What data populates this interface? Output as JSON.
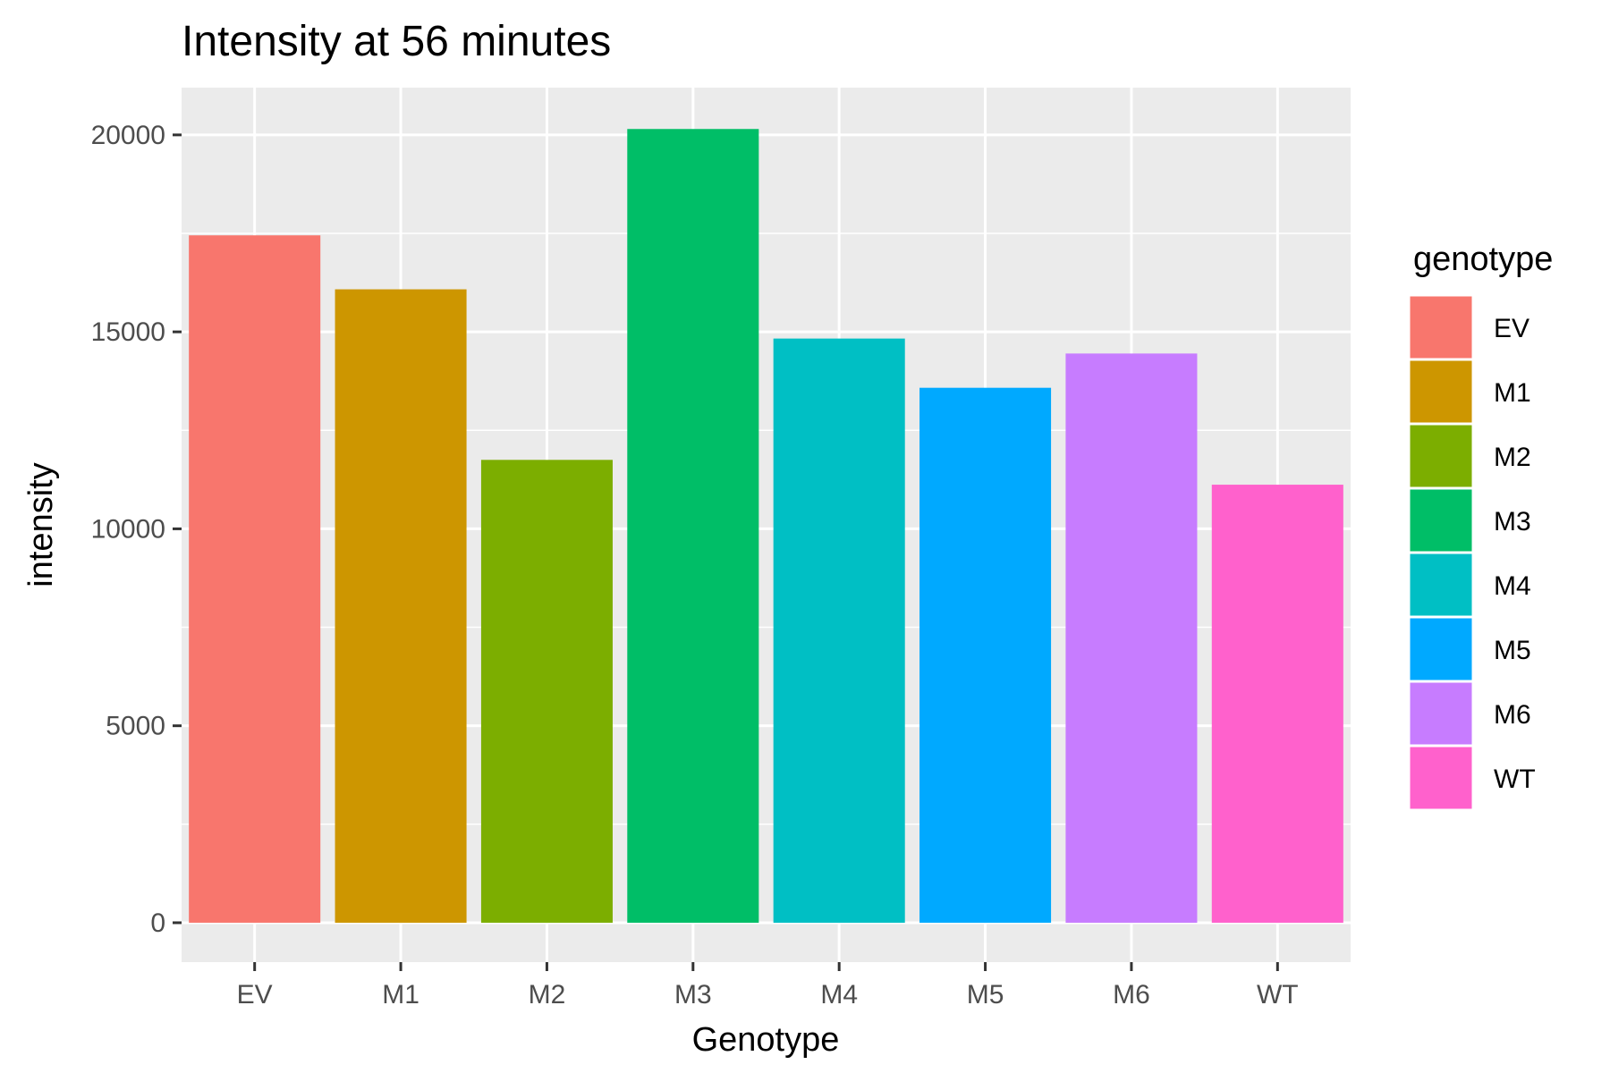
{
  "chart_data": {
    "type": "bar",
    "title": "Intensity at 56 minutes",
    "xlabel": "Genotype",
    "ylabel": "intensity",
    "categories": [
      "EV",
      "M1",
      "M2",
      "M3",
      "M4",
      "M5",
      "M6",
      "WT"
    ],
    "values": [
      17450,
      16080,
      11750,
      20150,
      14830,
      13580,
      14450,
      11120
    ],
    "colors": [
      "#F8766D",
      "#CD9600",
      "#7CAE00",
      "#00BE67",
      "#00BFC4",
      "#00A9FF",
      "#C77CFF",
      "#FF61CC"
    ],
    "ylim": [
      -1000,
      21200
    ],
    "yticks": [
      0,
      5000,
      10000,
      15000,
      20000
    ],
    "grid": true,
    "legend": {
      "title": "genotype",
      "position": "right"
    }
  }
}
